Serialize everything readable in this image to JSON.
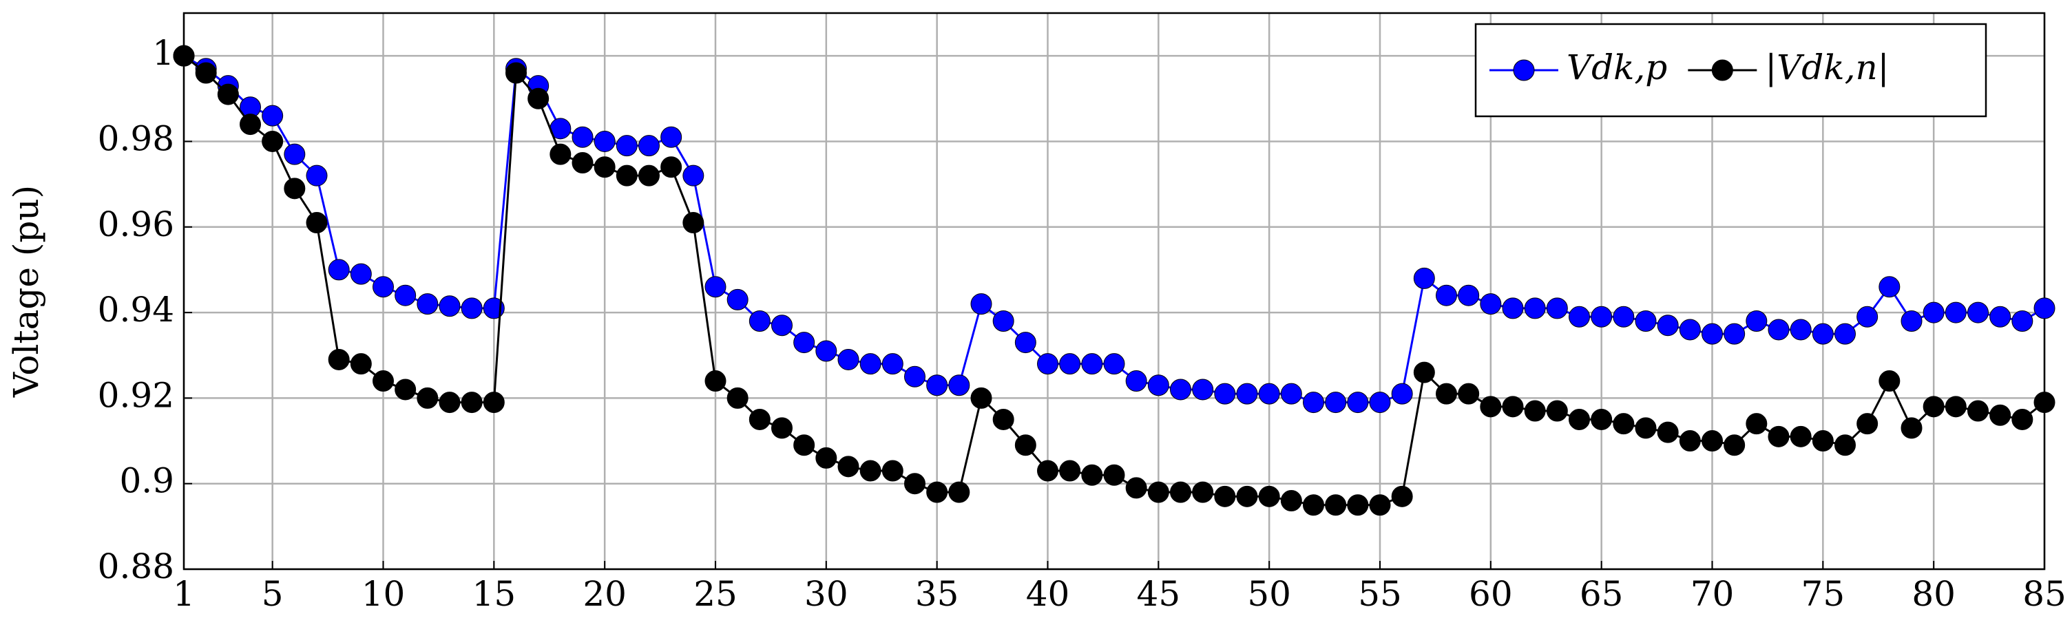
{
  "chart_data": {
    "type": "line",
    "y_label": "Voltage (pu)",
    "x": [
      1,
      2,
      3,
      4,
      5,
      6,
      7,
      8,
      9,
      10,
      11,
      12,
      13,
      14,
      15,
      16,
      17,
      18,
      19,
      20,
      21,
      22,
      23,
      24,
      25,
      26,
      27,
      28,
      29,
      30,
      31,
      32,
      33,
      34,
      35,
      36,
      37,
      38,
      39,
      40,
      41,
      42,
      43,
      44,
      45,
      46,
      47,
      48,
      49,
      50,
      51,
      52,
      53,
      54,
      55,
      56,
      57,
      58,
      59,
      60,
      61,
      62,
      63,
      64,
      65,
      66,
      67,
      68,
      69,
      70,
      71,
      72,
      73,
      74,
      75,
      76,
      77,
      78,
      79,
      80,
      81,
      82,
      83,
      84,
      85
    ],
    "series": [
      {
        "name": "Vdk,p",
        "color": "#0000ff",
        "values": [
          1.0,
          0.997,
          0.993,
          0.988,
          0.986,
          0.977,
          0.972,
          0.95,
          0.949,
          0.946,
          0.944,
          0.942,
          0.9415,
          0.941,
          0.941,
          0.997,
          0.993,
          0.983,
          0.981,
          0.98,
          0.979,
          0.979,
          0.981,
          0.972,
          0.946,
          0.943,
          0.938,
          0.937,
          0.933,
          0.931,
          0.929,
          0.928,
          0.928,
          0.925,
          0.923,
          0.923,
          0.942,
          0.938,
          0.933,
          0.928,
          0.928,
          0.928,
          0.928,
          0.924,
          0.923,
          0.922,
          0.922,
          0.921,
          0.921,
          0.921,
          0.921,
          0.919,
          0.919,
          0.919,
          0.919,
          0.921,
          0.948,
          0.944,
          0.944,
          0.942,
          0.941,
          0.941,
          0.941,
          0.939,
          0.939,
          0.939,
          0.938,
          0.937,
          0.936,
          0.935,
          0.935,
          0.938,
          0.936,
          0.936,
          0.935,
          0.935,
          0.939,
          0.946,
          0.938,
          0.94,
          0.94,
          0.94,
          0.939,
          0.938,
          0.941
        ]
      },
      {
        "name": "|Vdk,n|",
        "color": "#000000",
        "values": [
          1.0,
          0.996,
          0.991,
          0.984,
          0.98,
          0.969,
          0.961,
          0.929,
          0.928,
          0.924,
          0.922,
          0.92,
          0.919,
          0.919,
          0.919,
          0.996,
          0.99,
          0.977,
          0.975,
          0.974,
          0.972,
          0.972,
          0.974,
          0.961,
          0.924,
          0.92,
          0.915,
          0.913,
          0.909,
          0.906,
          0.904,
          0.903,
          0.903,
          0.9,
          0.898,
          0.898,
          0.92,
          0.915,
          0.909,
          0.903,
          0.903,
          0.902,
          0.902,
          0.899,
          0.898,
          0.898,
          0.898,
          0.897,
          0.897,
          0.897,
          0.896,
          0.895,
          0.895,
          0.895,
          0.895,
          0.897,
          0.926,
          0.921,
          0.921,
          0.918,
          0.918,
          0.917,
          0.917,
          0.915,
          0.915,
          0.914,
          0.913,
          0.912,
          0.91,
          0.91,
          0.909,
          0.914,
          0.911,
          0.911,
          0.91,
          0.909,
          0.914,
          0.924,
          0.913,
          0.918,
          0.918,
          0.917,
          0.916,
          0.915,
          0.919
        ]
      }
    ],
    "xlim": [
      1,
      85
    ],
    "xticks": [
      1,
      5,
      10,
      15,
      20,
      25,
      30,
      35,
      40,
      45,
      50,
      55,
      60,
      65,
      70,
      75,
      80,
      85
    ],
    "ylim": [
      0.88,
      1.01
    ],
    "yticks": [
      0.88,
      0.9,
      0.92,
      0.94,
      0.96,
      0.98,
      1
    ],
    "grid": true,
    "legend": "upper right"
  }
}
